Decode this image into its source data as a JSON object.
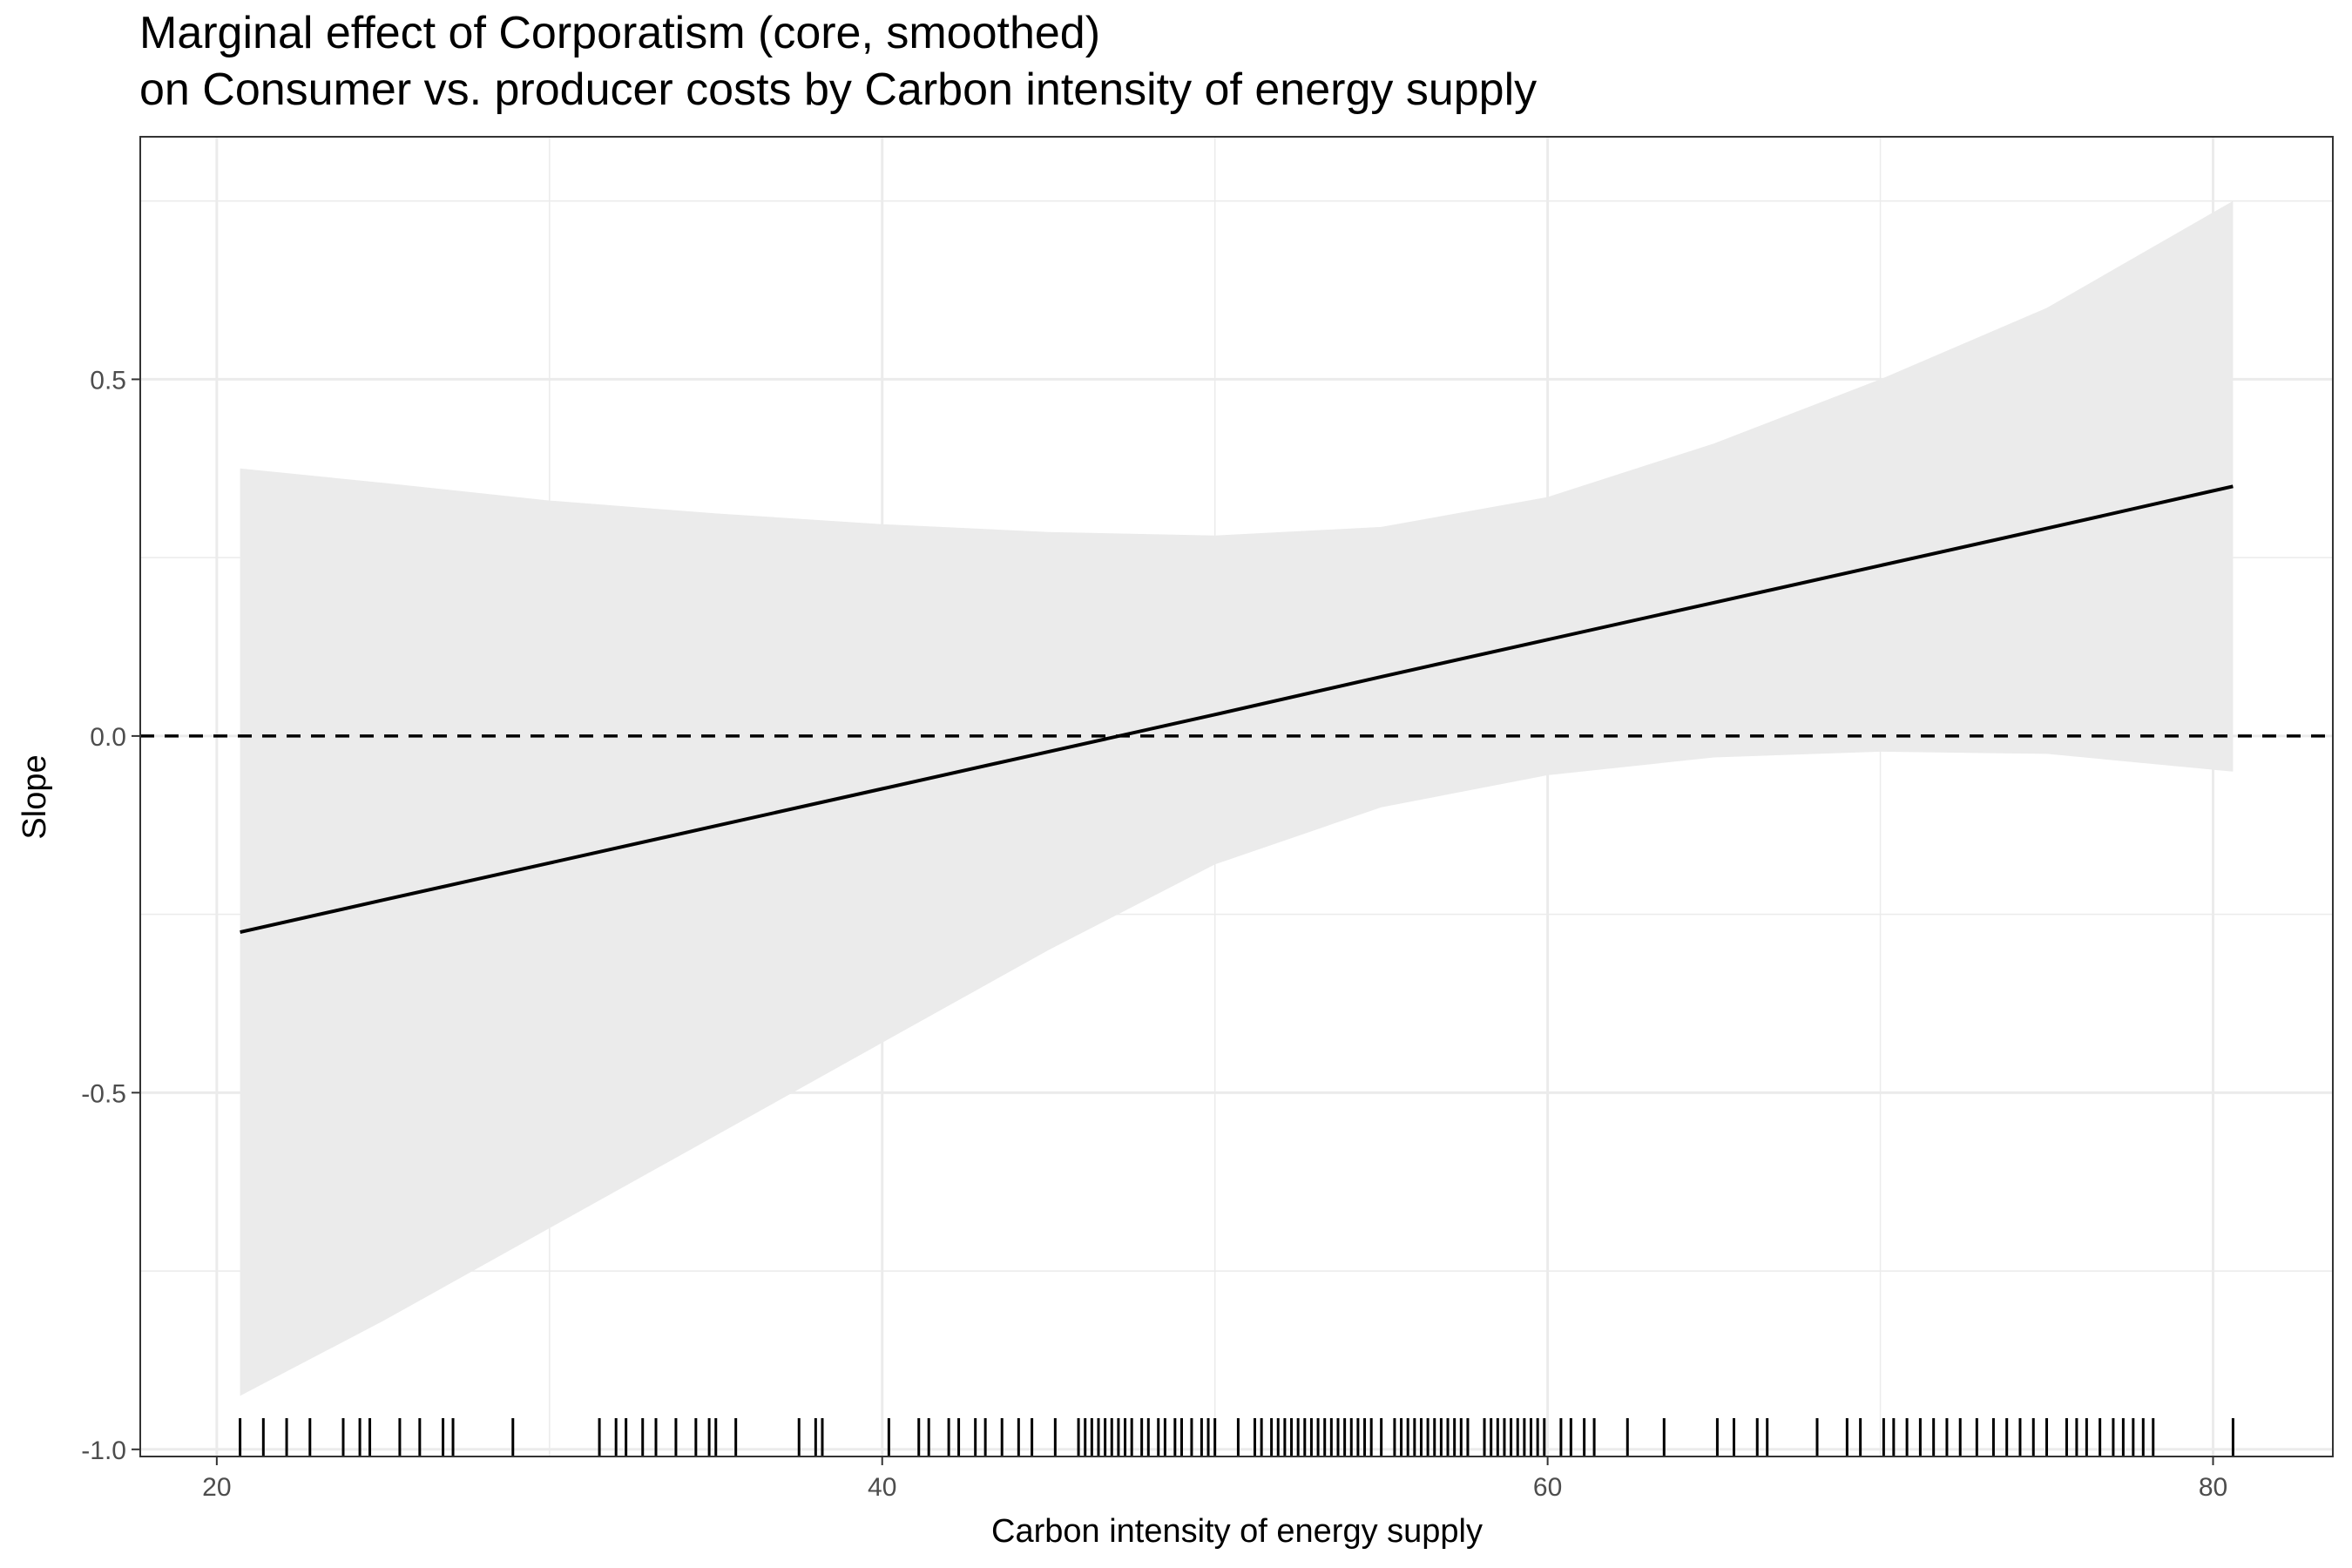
{
  "chart_data": {
    "type": "line",
    "title": "Marginal effect of Corporatism (core, smoothed)",
    "subtitle": "on Consumer vs. producer costs by Carbon intensity of energy supply",
    "xlabel": "Carbon intensity of energy supply",
    "ylabel": "Slope",
    "xlim": [
      17.7,
      83.6
    ],
    "ylim": [
      -1.01,
      0.84
    ],
    "x_ticks": [
      20,
      40,
      60,
      80
    ],
    "y_ticks": [
      -1.0,
      -0.5,
      0.0,
      0.5
    ],
    "x_tick_labels": [
      "20",
      "40",
      "60",
      "80"
    ],
    "y_tick_labels": [
      "-1.0",
      "-0.5",
      "0.0",
      "0.5"
    ],
    "grid": true,
    "reference_line": {
      "y": 0,
      "style": "dashed"
    },
    "colors": {
      "line": "#000000",
      "ribbon": "#ebebeb",
      "grid": "#ebebeb",
      "border": "#333333"
    },
    "series": [
      {
        "x": [
          20.7,
          25,
          30,
          35,
          40,
          45,
          50,
          55,
          60,
          65,
          70,
          75,
          80.6
        ],
        "y": [
          -0.275,
          -0.23,
          -0.178,
          -0.126,
          -0.074,
          -0.022,
          0.03,
          0.083,
          0.135,
          0.187,
          0.239,
          0.291,
          0.35
        ],
        "lower": [
          -0.925,
          -0.82,
          -0.69,
          -0.56,
          -0.43,
          -0.3,
          -0.18,
          -0.1,
          -0.055,
          -0.03,
          -0.022,
          -0.025,
          -0.05
        ],
        "upper": [
          0.375,
          0.355,
          0.33,
          0.312,
          0.297,
          0.286,
          0.281,
          0.293,
          0.335,
          0.41,
          0.5,
          0.6,
          0.75
        ]
      }
    ],
    "rug_x": [
      20.7,
      21.4,
      22.1,
      22.8,
      23.8,
      24.3,
      24.6,
      25.5,
      26.1,
      26.8,
      27.1,
      28.9,
      31.5,
      32.0,
      32.3,
      32.8,
      33.2,
      33.8,
      34.4,
      34.8,
      35.0,
      35.6,
      37.5,
      38.0,
      38.2,
      40.2,
      41.1,
      41.4,
      42.0,
      42.3,
      42.8,
      43.1,
      43.6,
      44.1,
      44.5,
      45.2,
      45.9,
      46.1,
      46.3,
      46.5,
      46.7,
      46.9,
      47.1,
      47.3,
      47.5,
      47.8,
      48.0,
      48.3,
      48.5,
      48.8,
      49.0,
      49.3,
      49.6,
      49.8,
      50.0,
      50.7,
      51.2,
      51.4,
      51.7,
      51.9,
      52.1,
      52.3,
      52.5,
      52.7,
      52.9,
      53.1,
      53.3,
      53.5,
      53.7,
      53.9,
      54.1,
      54.3,
      54.5,
      54.7,
      55.0,
      55.4,
      55.6,
      55.8,
      56.0,
      56.2,
      56.4,
      56.6,
      56.8,
      57.0,
      57.2,
      57.4,
      57.6,
      58.1,
      58.3,
      58.5,
      58.7,
      58.9,
      59.1,
      59.3,
      59.5,
      59.7,
      59.9,
      60.4,
      60.7,
      61.1,
      61.4,
      62.4,
      63.5,
      65.1,
      65.6,
      66.3,
      66.6,
      68.1,
      69.0,
      69.4,
      70.1,
      70.4,
      70.8,
      71.2,
      71.6,
      72.0,
      72.4,
      72.9,
      73.4,
      73.8,
      74.2,
      74.6,
      75.0,
      75.6,
      75.9,
      76.2,
      76.6,
      77.0,
      77.3,
      77.6,
      77.9,
      78.2,
      80.6
    ]
  }
}
